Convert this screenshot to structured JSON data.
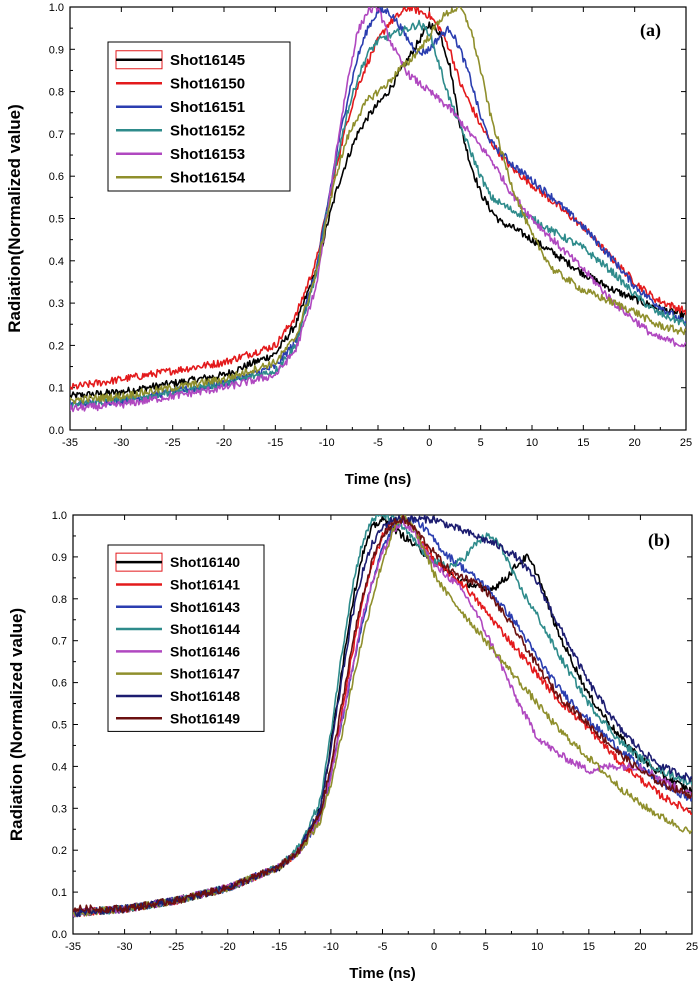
{
  "chart_data": [
    {
      "type": "line",
      "panel_label": "(a)",
      "xlabel": "Time (ns)",
      "ylabel": "Radiation(Normalized value)",
      "xlim": [
        -35,
        25
      ],
      "ylim": [
        0.0,
        1.0
      ],
      "xticks": [
        "-35",
        "-30",
        "-25",
        "-20",
        "-15",
        "-10",
        "-5",
        "0",
        "5",
        "10",
        "15",
        "20",
        "25"
      ],
      "yticks": [
        "0.0",
        "0.1",
        "0.2",
        "0.3",
        "0.4",
        "0.5",
        "0.6",
        "0.7",
        "0.8",
        "0.9",
        "1.0"
      ],
      "legend_position": "top-left",
      "series": [
        {
          "name": "Shot16145",
          "color": "#000000",
          "x": [
            -35,
            -30,
            -25,
            -20,
            -15,
            -13,
            -11,
            -10,
            -9,
            -8,
            -7,
            -6,
            -5,
            -4,
            -3,
            -2,
            -1,
            0,
            1,
            2,
            3,
            4,
            5,
            6,
            7,
            8,
            10,
            12,
            15,
            18,
            20,
            22,
            25
          ],
          "y": [
            0.08,
            0.09,
            0.11,
            0.13,
            0.18,
            0.25,
            0.38,
            0.48,
            0.57,
            0.64,
            0.7,
            0.74,
            0.77,
            0.8,
            0.84,
            0.88,
            0.92,
            0.96,
            0.94,
            0.86,
            0.72,
            0.63,
            0.56,
            0.52,
            0.49,
            0.48,
            0.45,
            0.42,
            0.37,
            0.33,
            0.31,
            0.29,
            0.27
          ]
        },
        {
          "name": "Shot16150",
          "color": "#e31a1c",
          "x": [
            -35,
            -30,
            -25,
            -20,
            -15,
            -13,
            -11,
            -10,
            -9,
            -8,
            -7,
            -6,
            -5,
            -4,
            -3,
            -2,
            -1,
            0,
            1,
            2,
            3,
            4,
            5,
            6,
            8,
            10,
            12,
            15,
            18,
            20,
            22,
            25
          ],
          "y": [
            0.1,
            0.12,
            0.14,
            0.16,
            0.2,
            0.27,
            0.4,
            0.52,
            0.63,
            0.73,
            0.81,
            0.87,
            0.92,
            0.96,
            0.98,
            1.0,
            0.99,
            0.98,
            0.95,
            0.9,
            0.82,
            0.77,
            0.72,
            0.68,
            0.62,
            0.58,
            0.54,
            0.48,
            0.4,
            0.35,
            0.31,
            0.28
          ]
        },
        {
          "name": "Shot16151",
          "color": "#2b3eb0",
          "x": [
            -35,
            -30,
            -25,
            -20,
            -15,
            -13,
            -11,
            -10,
            -9,
            -8,
            -7,
            -6,
            -5,
            -4,
            -3,
            -2,
            -1,
            0,
            1,
            2,
            3,
            4,
            5,
            6,
            8,
            10,
            12,
            15,
            18,
            20,
            22,
            25
          ],
          "y": [
            0.06,
            0.07,
            0.09,
            0.11,
            0.15,
            0.21,
            0.38,
            0.52,
            0.66,
            0.78,
            0.88,
            0.95,
            0.99,
            0.99,
            0.96,
            0.92,
            0.89,
            0.9,
            0.93,
            0.95,
            0.9,
            0.83,
            0.74,
            0.68,
            0.63,
            0.59,
            0.55,
            0.48,
            0.4,
            0.34,
            0.3,
            0.25
          ]
        },
        {
          "name": "Shot16152",
          "color": "#2e8b8b",
          "x": [
            -35,
            -30,
            -25,
            -20,
            -15,
            -13,
            -11,
            -10,
            -9,
            -8,
            -7,
            -6,
            -5,
            -4,
            -3,
            -2,
            -1,
            0,
            1,
            2,
            3,
            4,
            5,
            6,
            8,
            10,
            12,
            15,
            18,
            20,
            22,
            25
          ],
          "y": [
            0.06,
            0.07,
            0.09,
            0.11,
            0.14,
            0.2,
            0.37,
            0.51,
            0.64,
            0.75,
            0.83,
            0.89,
            0.92,
            0.93,
            0.94,
            0.95,
            0.96,
            0.94,
            0.86,
            0.78,
            0.72,
            0.66,
            0.6,
            0.55,
            0.52,
            0.5,
            0.47,
            0.43,
            0.37,
            0.32,
            0.28,
            0.25
          ]
        },
        {
          "name": "Shot16153",
          "color": "#b048c0",
          "x": [
            -35,
            -30,
            -25,
            -20,
            -15,
            -13,
            -11,
            -10,
            -9,
            -8,
            -7,
            -6,
            -5,
            -4,
            -3,
            -2,
            -1,
            0,
            1,
            2,
            3,
            4,
            5,
            6,
            8,
            10,
            12,
            15,
            18,
            20,
            22,
            25
          ],
          "y": [
            0.05,
            0.06,
            0.08,
            0.1,
            0.13,
            0.19,
            0.34,
            0.5,
            0.67,
            0.82,
            0.94,
            0.99,
            1.0,
            0.93,
            0.88,
            0.84,
            0.82,
            0.8,
            0.78,
            0.76,
            0.73,
            0.7,
            0.67,
            0.64,
            0.56,
            0.5,
            0.45,
            0.38,
            0.3,
            0.26,
            0.22,
            0.2
          ]
        },
        {
          "name": "Shot16154",
          "color": "#8f8f2c",
          "x": [
            -35,
            -30,
            -25,
            -20,
            -15,
            -13,
            -11,
            -10,
            -9,
            -8,
            -7,
            -6,
            -5,
            -4,
            -3,
            -2,
            -1,
            0,
            1,
            2,
            3,
            4,
            5,
            6,
            8,
            10,
            12,
            15,
            18,
            20,
            22,
            25
          ],
          "y": [
            0.07,
            0.08,
            0.1,
            0.12,
            0.16,
            0.22,
            0.37,
            0.5,
            0.61,
            0.69,
            0.74,
            0.78,
            0.8,
            0.82,
            0.85,
            0.87,
            0.9,
            0.93,
            0.97,
            0.99,
            1.0,
            0.95,
            0.85,
            0.74,
            0.58,
            0.46,
            0.38,
            0.33,
            0.3,
            0.28,
            0.25,
            0.23
          ]
        }
      ]
    },
    {
      "type": "line",
      "panel_label": "(b)",
      "xlabel": "Time (ns)",
      "ylabel": "Radiation (Normalized value)",
      "xlim": [
        -35,
        25
      ],
      "ylim": [
        0.0,
        1.0
      ],
      "xticks": [
        "-35",
        "-30",
        "-25",
        "-20",
        "-15",
        "-10",
        "-5",
        "0",
        "5",
        "10",
        "15",
        "20",
        "25"
      ],
      "yticks": [
        "0.0",
        "0.1",
        "0.2",
        "0.3",
        "0.4",
        "0.5",
        "0.6",
        "0.7",
        "0.8",
        "0.9",
        "1.0"
      ],
      "legend_position": "top-left",
      "series": [
        {
          "name": "Shot16140",
          "color": "#000000",
          "x": [
            -35,
            -30,
            -25,
            -20,
            -15,
            -13,
            -11,
            -10,
            -9,
            -8,
            -7,
            -6,
            -5,
            -4,
            -3,
            -2,
            -1,
            0,
            1,
            2,
            3,
            4,
            5,
            6,
            7,
            8,
            9,
            10,
            12,
            15,
            18,
            20,
            22,
            25
          ],
          "y": [
            0.05,
            0.06,
            0.08,
            0.11,
            0.16,
            0.2,
            0.3,
            0.45,
            0.62,
            0.78,
            0.9,
            0.97,
            0.99,
            0.97,
            0.95,
            0.93,
            0.91,
            0.89,
            0.87,
            0.85,
            0.84,
            0.83,
            0.82,
            0.83,
            0.85,
            0.88,
            0.9,
            0.86,
            0.72,
            0.57,
            0.47,
            0.42,
            0.38,
            0.34
          ]
        },
        {
          "name": "Shot16141",
          "color": "#e31a1c",
          "x": [
            -35,
            -30,
            -25,
            -20,
            -15,
            -13,
            -11,
            -10,
            -9,
            -8,
            -7,
            -6,
            -5,
            -4,
            -3,
            -2,
            -1,
            0,
            1,
            2,
            3,
            4,
            5,
            6,
            8,
            10,
            12,
            15,
            18,
            20,
            22,
            25
          ],
          "y": [
            0.05,
            0.06,
            0.08,
            0.11,
            0.16,
            0.2,
            0.28,
            0.38,
            0.52,
            0.66,
            0.79,
            0.88,
            0.95,
            0.98,
            0.99,
            0.97,
            0.93,
            0.89,
            0.87,
            0.85,
            0.83,
            0.8,
            0.77,
            0.74,
            0.68,
            0.62,
            0.56,
            0.49,
            0.41,
            0.37,
            0.33,
            0.29
          ]
        },
        {
          "name": "Shot16143",
          "color": "#2b3eb0",
          "x": [
            -35,
            -30,
            -25,
            -20,
            -15,
            -13,
            -11,
            -10,
            -9,
            -8,
            -7,
            -6,
            -5,
            -4,
            -3,
            -2,
            -1,
            0,
            1,
            2,
            3,
            4,
            5,
            6,
            8,
            10,
            12,
            15,
            18,
            20,
            22,
            25
          ],
          "y": [
            0.05,
            0.06,
            0.08,
            0.11,
            0.16,
            0.2,
            0.28,
            0.38,
            0.5,
            0.62,
            0.74,
            0.84,
            0.92,
            0.97,
            0.99,
            0.99,
            0.97,
            0.94,
            0.91,
            0.89,
            0.87,
            0.85,
            0.83,
            0.8,
            0.74,
            0.66,
            0.59,
            0.51,
            0.44,
            0.4,
            0.36,
            0.32
          ]
        },
        {
          "name": "Shot16144",
          "color": "#2e8b8b",
          "x": [
            -35,
            -30,
            -25,
            -20,
            -15,
            -13,
            -11,
            -10,
            -9,
            -8,
            -7,
            -6,
            -5,
            -4,
            -3,
            -2,
            -1,
            0,
            1,
            2,
            3,
            4,
            5,
            6,
            7,
            8,
            10,
            12,
            15,
            18,
            20,
            22,
            25
          ],
          "y": [
            0.05,
            0.06,
            0.08,
            0.11,
            0.16,
            0.21,
            0.32,
            0.48,
            0.66,
            0.82,
            0.93,
            0.99,
            1.0,
            0.99,
            0.97,
            0.94,
            0.91,
            0.89,
            0.88,
            0.88,
            0.9,
            0.93,
            0.95,
            0.94,
            0.9,
            0.84,
            0.76,
            0.67,
            0.55,
            0.46,
            0.42,
            0.39,
            0.36
          ]
        },
        {
          "name": "Shot16146",
          "color": "#b048c0",
          "x": [
            -35,
            -30,
            -25,
            -20,
            -15,
            -13,
            -11,
            -10,
            -9,
            -8,
            -7,
            -6,
            -5,
            -4,
            -3,
            -2,
            -1,
            0,
            1,
            2,
            3,
            4,
            5,
            6,
            8,
            10,
            12,
            15,
            17,
            20,
            22,
            25
          ],
          "y": [
            0.05,
            0.06,
            0.08,
            0.11,
            0.16,
            0.2,
            0.28,
            0.38,
            0.5,
            0.63,
            0.75,
            0.84,
            0.91,
            0.96,
            0.98,
            0.96,
            0.92,
            0.88,
            0.86,
            0.84,
            0.81,
            0.77,
            0.72,
            0.67,
            0.56,
            0.47,
            0.43,
            0.39,
            0.4,
            0.4,
            0.37,
            0.33
          ]
        },
        {
          "name": "Shot16147",
          "color": "#8f8f2c",
          "x": [
            -35,
            -30,
            -25,
            -20,
            -15,
            -13,
            -11,
            -10,
            -9,
            -8,
            -7,
            -6,
            -5,
            -4,
            -3,
            -2,
            -1,
            0,
            1,
            2,
            3,
            4,
            5,
            6,
            8,
            10,
            12,
            15,
            18,
            20,
            22,
            25
          ],
          "y": [
            0.05,
            0.06,
            0.08,
            0.11,
            0.16,
            0.2,
            0.27,
            0.36,
            0.47,
            0.59,
            0.7,
            0.8,
            0.89,
            0.96,
            1.0,
            0.97,
            0.92,
            0.86,
            0.82,
            0.79,
            0.76,
            0.73,
            0.7,
            0.67,
            0.61,
            0.55,
            0.49,
            0.42,
            0.35,
            0.31,
            0.28,
            0.24
          ]
        },
        {
          "name": "Shot16148",
          "color": "#1c1c70",
          "x": [
            -35,
            -30,
            -25,
            -20,
            -15,
            -13,
            -11,
            -10,
            -9,
            -8,
            -7,
            -6,
            -5,
            -4,
            -3,
            -2,
            -1,
            0,
            1,
            2,
            3,
            4,
            5,
            6,
            8,
            10,
            12,
            15,
            18,
            20,
            22,
            25
          ],
          "y": [
            0.05,
            0.06,
            0.08,
            0.11,
            0.16,
            0.2,
            0.3,
            0.44,
            0.6,
            0.75,
            0.86,
            0.93,
            0.97,
            0.99,
            0.99,
            0.99,
            0.99,
            0.99,
            0.98,
            0.97,
            0.96,
            0.95,
            0.94,
            0.93,
            0.9,
            0.84,
            0.74,
            0.6,
            0.49,
            0.44,
            0.4,
            0.37
          ]
        },
        {
          "name": "Shot16149",
          "color": "#6b1010",
          "x": [
            -35,
            -30,
            -25,
            -20,
            -15,
            -13,
            -11,
            -10,
            -9,
            -8,
            -7,
            -6,
            -5,
            -4,
            -3,
            -2,
            -1,
            0,
            1,
            2,
            3,
            4,
            5,
            6,
            8,
            10,
            12,
            15,
            18,
            20,
            22,
            25
          ],
          "y": [
            0.06,
            0.06,
            0.08,
            0.11,
            0.16,
            0.2,
            0.29,
            0.4,
            0.54,
            0.68,
            0.8,
            0.89,
            0.95,
            0.98,
            0.99,
            0.97,
            0.94,
            0.91,
            0.88,
            0.86,
            0.85,
            0.84,
            0.82,
            0.79,
            0.72,
            0.64,
            0.57,
            0.5,
            0.43,
            0.39,
            0.36,
            0.33
          ]
        }
      ]
    }
  ]
}
